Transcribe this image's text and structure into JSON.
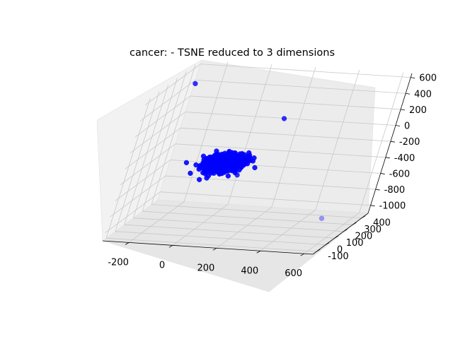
{
  "title": "cancer: - TSNE reduced to 3 dimensions",
  "chart_data": {
    "type": "scatter",
    "dimensions": 3,
    "color": "#0000ff",
    "axes": {
      "x": {
        "ticks": [
          "-200",
          "0",
          "200",
          "400",
          "600"
        ],
        "range": [
          -320,
          640
        ]
      },
      "y": {
        "ticks": [
          "-100",
          "0",
          "100",
          "200",
          "300",
          "400"
        ],
        "range": [
          -140,
          470
        ]
      },
      "z": {
        "ticks": [
          "600",
          "400",
          "200",
          "0",
          "-200",
          "-400",
          "-600",
          "-800",
          "-1000"
        ],
        "range": [
          -1100,
          650
        ]
      }
    },
    "grid": true,
    "outliers": [
      {
        "x": -300,
        "y": 420,
        "z": 400
      },
      {
        "x": 150,
        "y": 410,
        "z": 50
      },
      {
        "x": 620,
        "y": -110,
        "z": -680
      },
      {
        "x": -30,
        "y": 160,
        "z": -320
      },
      {
        "x": 60,
        "y": 50,
        "z": -330
      },
      {
        "x": 140,
        "y": 20,
        "z": -330
      }
    ],
    "cluster": {
      "center": {
        "x": 40,
        "y": 120,
        "z": -280
      },
      "spread": {
        "x": 80,
        "y": 100,
        "z": 60
      },
      "count": 560
    }
  }
}
